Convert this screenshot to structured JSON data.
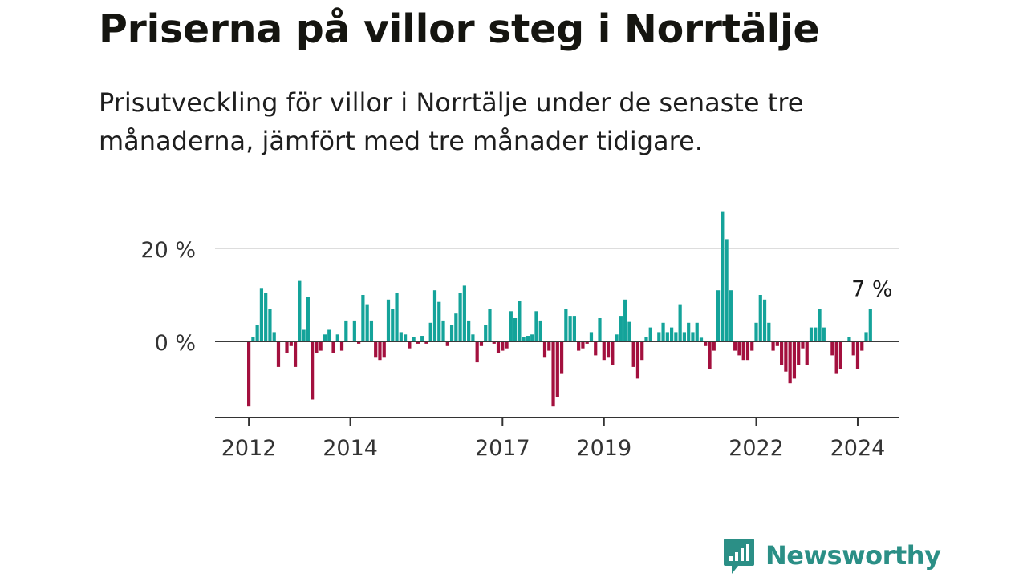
{
  "header": {
    "title": "Priserna på villor steg i Norrtälje",
    "subtitle": "Prisutveckling för villor i Norrtälje under de senaste tre månaderna, jämfört med tre månader tidigare."
  },
  "brand": {
    "name": "Newsworthy",
    "icon": "newsworthy-logo-icon",
    "color": "#2b8f86"
  },
  "colors": {
    "positive": "#14a39a",
    "negative": "#a3103e",
    "zero_line": "#3a3a3a",
    "grid": "#dddddd",
    "axis": "#333333"
  },
  "chart_data": {
    "type": "bar",
    "title": "Priserna på villor steg i Norrtälje",
    "subtitle": "Prisutveckling för villor i Norrtälje under de senaste tre månaderna, jämfört med tre månader tidigare.",
    "x_start": "2012-01",
    "x_step": "month",
    "x_ticks": [
      {
        "date": "2012-01",
        "label": "2012"
      },
      {
        "date": "2014-01",
        "label": "2014"
      },
      {
        "date": "2017-01",
        "label": "2017"
      },
      {
        "date": "2019-01",
        "label": "2019"
      },
      {
        "date": "2022-01",
        "label": "2022"
      },
      {
        "date": "2024-01",
        "label": "2024"
      }
    ],
    "y_ticks": [
      {
        "value": 20,
        "label": "20 %"
      },
      {
        "value": 0,
        "label": "0 %"
      }
    ],
    "ylim": [
      -16,
      30
    ],
    "grid": true,
    "last_label": "7 %",
    "values": [
      -14,
      1,
      3.5,
      11.5,
      10.5,
      7,
      2,
      -5.5,
      0,
      -2.5,
      -1,
      -5.5,
      13,
      2.5,
      9.5,
      -12.5,
      -2.5,
      -2,
      1.5,
      2.5,
      -2.5,
      1.5,
      -2,
      4.5,
      0,
      4.5,
      -0.5,
      10,
      8,
      4.5,
      -3.5,
      -4,
      -3.5,
      9,
      7,
      10.5,
      2,
      1.5,
      -1.5,
      1,
      -0.5,
      1.2,
      -0.5,
      4,
      11,
      8.5,
      4.5,
      -1,
      3.5,
      6,
      10.5,
      12,
      4.5,
      1.5,
      -4.5,
      -1,
      3.5,
      7,
      -0.5,
      -2.5,
      -2,
      -1.5,
      6.5,
      5,
      8.7,
      1,
      1.2,
      1.5,
      6.5,
      4.5,
      -3.5,
      -2,
      -14,
      -12,
      -7,
      6.9,
      5.5,
      5.5,
      -2,
      -1.5,
      -0.5,
      2,
      -3,
      5,
      -4,
      -3.5,
      -5,
      1.5,
      5.5,
      9,
      4.2,
      -5.5,
      -8,
      -4,
      1,
      3,
      0,
      2,
      4,
      2,
      3,
      2,
      8,
      2,
      4,
      2,
      4,
      0.8,
      -1,
      -6,
      -2,
      11,
      28,
      22,
      11,
      -2,
      -3,
      -4,
      -4,
      -2,
      4,
      10,
      9,
      4,
      -2,
      -1,
      -5,
      -6.5,
      -9,
      -8,
      -5,
      -1.5,
      -5,
      3,
      3,
      7,
      3,
      0,
      -3,
      -7,
      -6,
      0,
      1,
      -3,
      -6,
      -2,
      2,
      7
    ]
  }
}
